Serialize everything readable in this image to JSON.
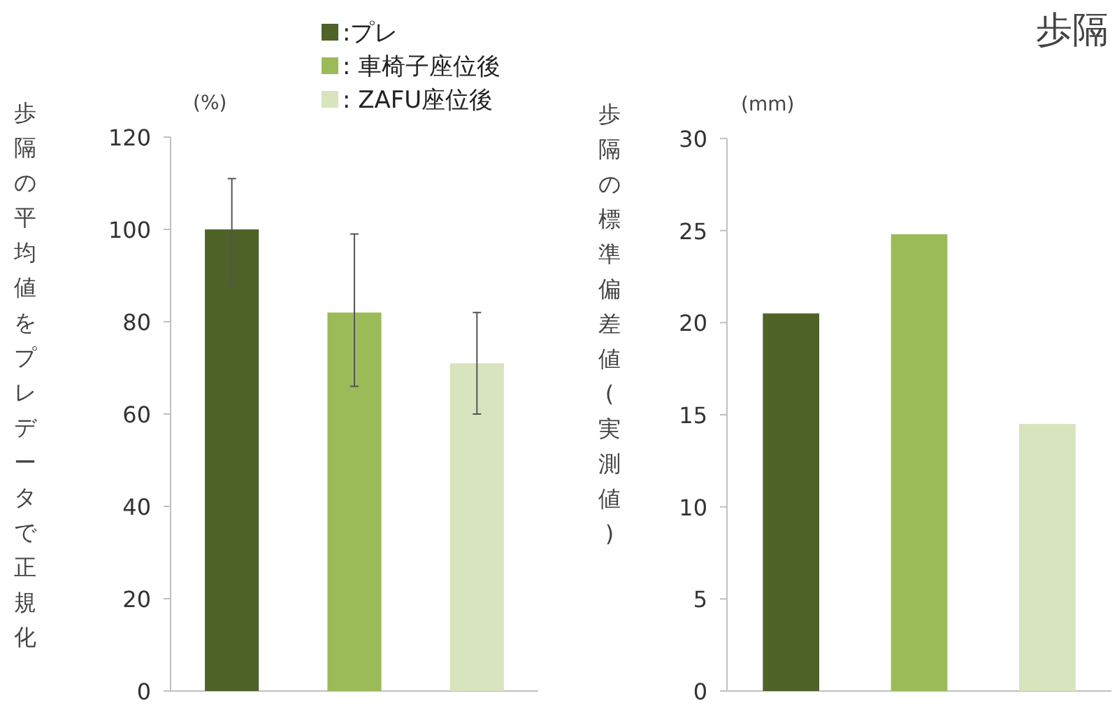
{
  "chart_data": [
    {
      "type": "bar",
      "ylabel": "歩隔の平均値をプレデータで正規化",
      "annotations": [
        "(%)"
      ],
      "categories": [
        null
      ],
      "ylim": [
        0,
        120
      ],
      "yticks": [
        0,
        20,
        40,
        60,
        80,
        100,
        120
      ],
      "legend": "top right",
      "series": [
        {
          "name": ":プレ",
          "color": "#4f6228",
          "values": [
            100
          ],
          "errors": [
            [
              88,
              111
            ]
          ]
        },
        {
          "name": ": 車椅子座位後",
          "color": "#9bbb59",
          "values": [
            82
          ],
          "errors": [
            [
              66,
              99
            ]
          ]
        },
        {
          "name": ": ZAFU座位後",
          "color": "#d7e4bd",
          "values": [
            71
          ],
          "errors": [
            [
              60,
              82
            ]
          ]
        }
      ]
    },
    {
      "type": "bar",
      "title": "歩隔",
      "ylabel": "歩隔の標準偏差値(実測値)",
      "annotations": [
        "(mm)"
      ],
      "categories": [
        null
      ],
      "ylim": [
        0,
        30
      ],
      "yticks": [
        0,
        5,
        10,
        15,
        20,
        25,
        30
      ],
      "series": [
        {
          "color": "#4f6228",
          "values": [
            20.5
          ]
        },
        {
          "color": "#9bbb59",
          "values": [
            24.8
          ]
        },
        {
          "color": "#d7e4bd",
          "values": [
            14.5
          ]
        }
      ]
    }
  ]
}
